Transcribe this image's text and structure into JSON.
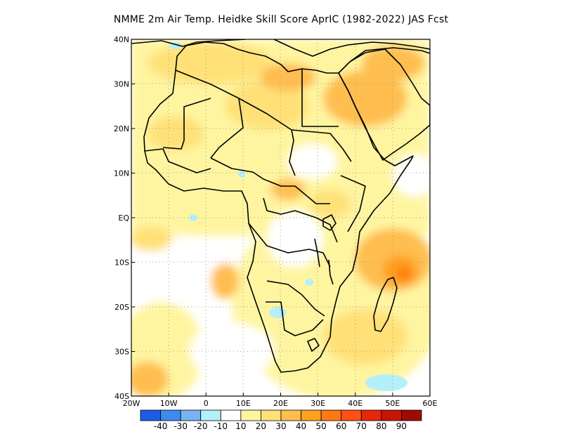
{
  "title": "NMME  2m Air Temp. Heidke Skill Score AprIC (1982-2022) JAS Fcst",
  "map": {
    "lon_range": [
      -20,
      60
    ],
    "lat_range": [
      -40,
      40
    ],
    "x_ticks": [
      {
        "lon": -20,
        "label": "20W"
      },
      {
        "lon": -10,
        "label": "10W"
      },
      {
        "lon": 0,
        "label": "0"
      },
      {
        "lon": 10,
        "label": "10E"
      },
      {
        "lon": 20,
        "label": "20E"
      },
      {
        "lon": 30,
        "label": "30E"
      },
      {
        "lon": 40,
        "label": "40E"
      },
      {
        "lon": 50,
        "label": "50E"
      },
      {
        "lon": 60,
        "label": "60E"
      }
    ],
    "y_ticks": [
      {
        "lat": 40,
        "label": "40N"
      },
      {
        "lat": 30,
        "label": "30N"
      },
      {
        "lat": 20,
        "label": "20N"
      },
      {
        "lat": 10,
        "label": "10N"
      },
      {
        "lat": 0,
        "label": "EQ"
      },
      {
        "lat": -10,
        "label": "10S"
      },
      {
        "lat": -20,
        "label": "20S"
      },
      {
        "lat": -30,
        "label": "30S"
      },
      {
        "lat": -40,
        "label": "40S"
      }
    ],
    "grid": true
  },
  "colorbar": {
    "colors": [
      "#1e5ce6",
      "#3c8cf0",
      "#78b4f5",
      "#b4f0fa",
      "#ffffff",
      "#fff5a0",
      "#ffe178",
      "#ffbe50",
      "#ffa01e",
      "#ff7814",
      "#ff5014",
      "#e6280a",
      "#c81405",
      "#a00a00"
    ],
    "labels": [
      "-40",
      "-30",
      "-20",
      "-10",
      "10",
      "20",
      "30",
      "40",
      "50",
      "60",
      "70",
      "80",
      "90"
    ]
  }
}
